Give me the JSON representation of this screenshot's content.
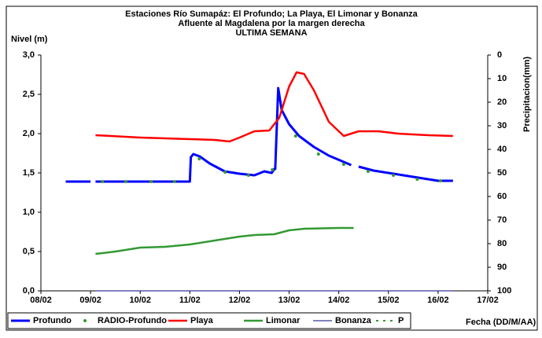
{
  "chart_data": {
    "type": "line",
    "title": "Estaciones Río Sumapáz: El Profundo; La Playa, El Limonar y Bonanza",
    "subtitle": "Afluente al Magdalena por la margen derecha",
    "subtitle2": "ULTIMA SEMANA",
    "ylabel": "Nivel (m)",
    "y2label": "Precipitacion(mm)",
    "xlabel": "Fecha (DD/M/AA)",
    "xlim": [
      8,
      17
    ],
    "xticks": [
      {
        "value": 8,
        "label": "08/02"
      },
      {
        "value": 9,
        "label": "09/02"
      },
      {
        "value": 10,
        "label": "10/02"
      },
      {
        "value": 11,
        "label": "11/02"
      },
      {
        "value": 12,
        "label": "12/02"
      },
      {
        "value": 13,
        "label": "13/02"
      },
      {
        "value": 14,
        "label": "14/02"
      },
      {
        "value": 15,
        "label": "15/02"
      },
      {
        "value": 16,
        "label": "16/02"
      },
      {
        "value": 17,
        "label": "17/02"
      }
    ],
    "ylim": [
      0,
      3
    ],
    "yticks": [
      {
        "value": 0,
        "label": "0,0"
      },
      {
        "value": 0.5,
        "label": "0,5"
      },
      {
        "value": 1,
        "label": "1,0"
      },
      {
        "value": 1.5,
        "label": "1,5"
      },
      {
        "value": 2,
        "label": "2,0"
      },
      {
        "value": 2.5,
        "label": "2,5"
      },
      {
        "value": 3,
        "label": "3,0"
      }
    ],
    "y2lim": [
      100,
      0
    ],
    "y2ticks": [
      0,
      10,
      20,
      30,
      40,
      50,
      60,
      70,
      80,
      90,
      100
    ],
    "series": [
      {
        "name": "Profundo",
        "color": "#0000ff",
        "style": "line",
        "x": [
          8.5,
          9.0,
          9.05,
          9.1,
          10.0,
          11.0,
          11.02,
          11.07,
          11.2,
          11.4,
          11.7,
          12.0,
          12.3,
          12.5,
          12.65,
          12.7,
          12.72,
          12.78,
          12.85,
          13.0,
          13.2,
          13.5,
          13.8,
          14.1,
          14.25,
          14.3,
          14.4,
          14.7,
          15.0,
          15.3,
          15.7,
          16.0,
          16.3
        ],
        "values": [
          1.39,
          1.39,
          null,
          1.39,
          1.39,
          1.39,
          1.7,
          1.74,
          1.71,
          1.62,
          1.52,
          1.49,
          1.47,
          1.52,
          1.5,
          1.55,
          1.55,
          2.58,
          2.3,
          2.12,
          1.97,
          1.83,
          1.72,
          1.64,
          1.6,
          null,
          1.58,
          1.53,
          1.5,
          1.47,
          1.43,
          1.4,
          1.4
        ]
      },
      {
        "name": "RADIO-Profundo",
        "color": "#339933",
        "style": "dots",
        "x": [
          9.24,
          9.71,
          10.22,
          10.69,
          11.19,
          11.71,
          12.18,
          12.66,
          13.13,
          13.59,
          14.1,
          14.59,
          15.1,
          15.58,
          16.05
        ],
        "values": [
          1.39,
          1.39,
          1.39,
          1.39,
          1.68,
          1.51,
          1.47,
          1.54,
          1.97,
          1.74,
          1.61,
          1.52,
          1.47,
          1.42,
          1.4
        ]
      },
      {
        "name": "Playa",
        "color": "#ff0000",
        "style": "line",
        "x": [
          9.1,
          10.0,
          11.0,
          11.5,
          11.8,
          12.0,
          12.3,
          12.6,
          12.8,
          13.0,
          13.15,
          13.3,
          13.5,
          13.8,
          14.1,
          14.4,
          14.8,
          15.2,
          15.8,
          16.3
        ],
        "values": [
          1.98,
          1.95,
          1.93,
          1.92,
          1.9,
          1.95,
          2.03,
          2.04,
          2.2,
          2.6,
          2.78,
          2.76,
          2.55,
          2.15,
          1.97,
          2.03,
          2.03,
          2.0,
          1.98,
          1.97
        ]
      },
      {
        "name": "Limonar",
        "color": "#339933",
        "style": "line",
        "x": [
          9.1,
          9.5,
          10.0,
          10.5,
          11.0,
          11.5,
          12.0,
          12.3,
          12.7,
          13.0,
          13.3,
          14.0,
          14.3
        ],
        "values": [
          0.47,
          0.5,
          0.55,
          0.56,
          0.59,
          0.64,
          0.69,
          0.71,
          0.72,
          0.77,
          0.79,
          0.8,
          0.8
        ]
      },
      {
        "name": "Bonanza",
        "color": "#000080",
        "style": "thin",
        "x": [
          9.1,
          16.3
        ],
        "values": [
          0,
          0
        ]
      },
      {
        "name": "P",
        "color": "#339933",
        "style": "dashes",
        "axis": "y2",
        "x": [],
        "values": []
      }
    ]
  }
}
